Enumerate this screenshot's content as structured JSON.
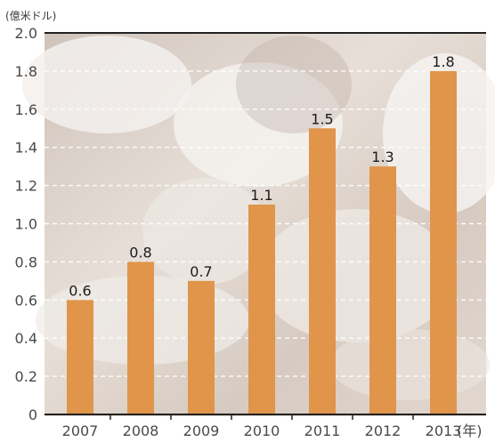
{
  "chart_data": {
    "type": "bar",
    "title": "",
    "xlabel": "",
    "ylabel": "",
    "y_unit_label": "(億米ドル)",
    "x_unit_suffix": "(年)",
    "categories": [
      "2007",
      "2008",
      "2009",
      "2010",
      "2011",
      "2012",
      "2013"
    ],
    "values": [
      0.6,
      0.8,
      0.7,
      1.1,
      1.5,
      1.3,
      1.8
    ],
    "value_labels": [
      "0.6",
      "0.8",
      "0.7",
      "1.1",
      "1.5",
      "1.3",
      "1.8"
    ],
    "ylim": [
      0,
      2.0
    ],
    "yticks": [
      "0",
      "0.2",
      "0.4",
      "0.6",
      "0.8",
      "1.0",
      "1.2",
      "1.4",
      "1.6",
      "1.8",
      "2.0"
    ],
    "grid": true,
    "legend": "none",
    "colors": {
      "bar": "#e0954a",
      "background_photo_tint": "#d8ccc3",
      "axis": "#222222",
      "grid": "#ffffff"
    }
  }
}
